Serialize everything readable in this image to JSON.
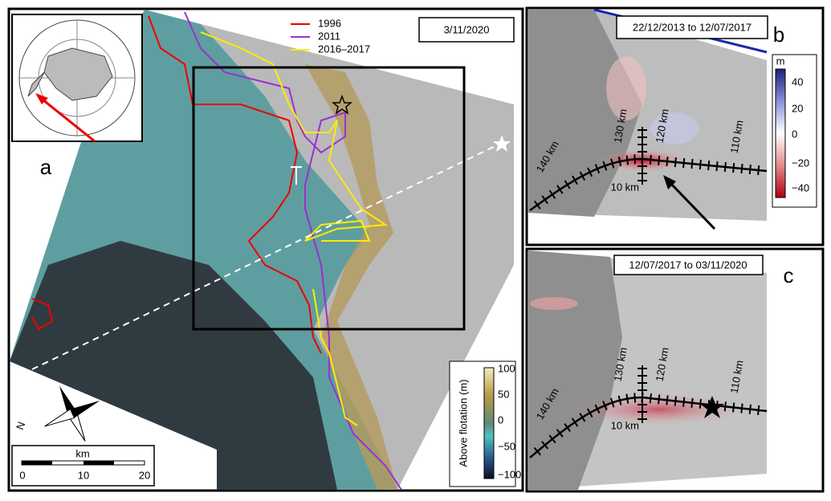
{
  "panel_a": {
    "label": "a",
    "date": "3/11/2020",
    "legend": [
      "1996",
      "2011",
      "2016–2017"
    ],
    "colorbar": {
      "title": "Above flotation (m)",
      "ticks": [
        "100",
        "50",
        "0",
        "−50",
        "−100"
      ]
    },
    "north": "N",
    "scale_bar": {
      "unit": "km",
      "ticks": [
        "0",
        "10",
        "20"
      ]
    }
  },
  "panel_b": {
    "label": "b",
    "period": "22/12/2013 to 12/07/2017",
    "colorbar": {
      "unit": "m",
      "ticks": [
        "40",
        "20",
        "0",
        "−20",
        "−40"
      ]
    },
    "profile_labels": [
      "140 km",
      "130 km",
      "120 km",
      "110 km",
      "10 km"
    ]
  },
  "panel_c": {
    "label": "c",
    "period": "12/07/2017 to 03/11/2020",
    "profile_labels": [
      "140 km",
      "130 km",
      "120 km",
      "110 km",
      "10 km"
    ]
  }
}
